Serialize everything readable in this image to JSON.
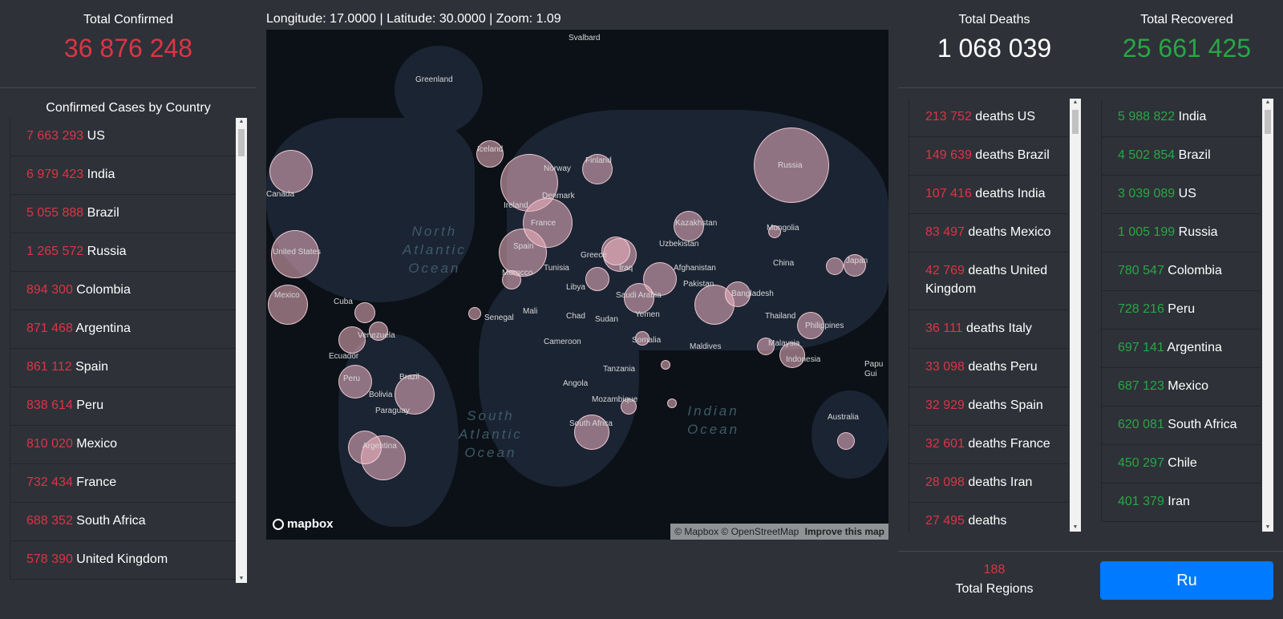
{
  "confirmed": {
    "title": "Total Confirmed",
    "value": "36 876 248"
  },
  "by_country": {
    "title": "Confirmed Cases by Country",
    "items": [
      {
        "count": "7 663 293",
        "name": "US"
      },
      {
        "count": "6 979 423",
        "name": "India"
      },
      {
        "count": "5 055 888",
        "name": "Brazil"
      },
      {
        "count": "1 265 572",
        "name": "Russia"
      },
      {
        "count": "894 300",
        "name": "Colombia"
      },
      {
        "count": "871 468",
        "name": "Argentina"
      },
      {
        "count": "861 112",
        "name": "Spain"
      },
      {
        "count": "838 614",
        "name": "Peru"
      },
      {
        "count": "810 020",
        "name": "Mexico"
      },
      {
        "count": "732 434",
        "name": "France"
      },
      {
        "count": "688 352",
        "name": "South Africa"
      },
      {
        "count": "578 390",
        "name": "United Kingdom"
      }
    ]
  },
  "map": {
    "coords": "Longitude: 17.0000 | Latitude: 30.0000 | Zoom: 1.09",
    "logo": "mapbox",
    "attribution": "© Mapbox © OpenStreetMap",
    "improve": "Improve this map",
    "labels": {
      "svalbard": "Svalbard",
      "greenland": "Greenland",
      "iceland": "Iceland",
      "finland": "Finland",
      "norway": "Norway",
      "denmark": "Denmark",
      "ireland": "Ireland",
      "france": "France",
      "spain": "Spain",
      "morocco": "Morocco",
      "tunisia": "Tunisia",
      "libya": "Libya",
      "greece": "Greece",
      "russia": "Russia",
      "kazakhstan": "Kazakhstan",
      "uzbekistan": "Uzbekistan",
      "mongolia": "Mongolia",
      "china": "China",
      "japan": "Japan",
      "afghanistan": "Afghanistan",
      "pakistan": "Pakistan",
      "iraq": "Iraq",
      "saudi": "Saudi Arabia",
      "yemen": "Yemen",
      "bangladesh": "Bangladesh",
      "thailand": "Thailand",
      "philippines": "Philippines",
      "malaysia": "Malaysia",
      "indonesia": "Indonesia",
      "papua": "Papu Gui",
      "australia": "Australia",
      "maldives": "Maldives",
      "canada": "Canada",
      "us": "United States",
      "mexico": "Mexico",
      "cuba": "Cuba",
      "venezuela": "Venezuela",
      "ecuador": "Ecuador",
      "peru": "Peru",
      "brazil": "Brazil",
      "bolivia": "Bolivia",
      "paraguay": "Paraguay",
      "argentina": "Argentina",
      "senegal": "Senegal",
      "mali": "Mali",
      "chad": "Chad",
      "sudan": "Sudan",
      "cameroon": "Cameroon",
      "somalia": "Somalia",
      "tanzania": "Tanzania",
      "angola": "Angola",
      "mozambique": "Mozambique",
      "south_africa": "South Africa"
    },
    "oceans": {
      "north_atlantic": "North\nAtlantic\nOcean",
      "south_atlantic": "South\nAtlantic\nOcean",
      "indian": "Indian\nOcean"
    }
  },
  "deaths": {
    "title": "Total Deaths",
    "value": "1 068 039",
    "items": [
      {
        "count": "213 752",
        "label": "deaths US"
      },
      {
        "count": "149 639",
        "label": "deaths Brazil"
      },
      {
        "count": "107 416",
        "label": "deaths India"
      },
      {
        "count": "83 497",
        "label": "deaths Mexico"
      },
      {
        "count": "42 769",
        "label": "deaths United Kingdom"
      },
      {
        "count": "36 111",
        "label": "deaths Italy"
      },
      {
        "count": "33 098",
        "label": "deaths Peru"
      },
      {
        "count": "32 929",
        "label": "deaths Spain"
      },
      {
        "count": "32 601",
        "label": "deaths France"
      },
      {
        "count": "28 098",
        "label": "deaths Iran"
      },
      {
        "count": "27 495",
        "label": "deaths"
      }
    ]
  },
  "recovered": {
    "title": "Total Recovered",
    "value": "25 661 425",
    "items": [
      {
        "count": "5 988 822",
        "name": "India"
      },
      {
        "count": "4 502 854",
        "name": "Brazil"
      },
      {
        "count": "3 039 089",
        "name": "US"
      },
      {
        "count": "1 005 199",
        "name": "Russia"
      },
      {
        "count": "780 547",
        "name": "Colombia"
      },
      {
        "count": "728 216",
        "name": "Peru"
      },
      {
        "count": "697 141",
        "name": "Argentina"
      },
      {
        "count": "687 123",
        "name": "Mexico"
      },
      {
        "count": "620 081",
        "name": "South Africa"
      },
      {
        "count": "450 297",
        "name": "Chile"
      },
      {
        "count": "401 379",
        "name": "Iran"
      }
    ]
  },
  "regions": {
    "value": "188",
    "label": "Total Regions"
  },
  "lang_button": {
    "label": "Ru"
  },
  "colors": {
    "red": "#dc3545",
    "green": "#28a745",
    "button": "#007bff",
    "background": "#2e3138"
  }
}
